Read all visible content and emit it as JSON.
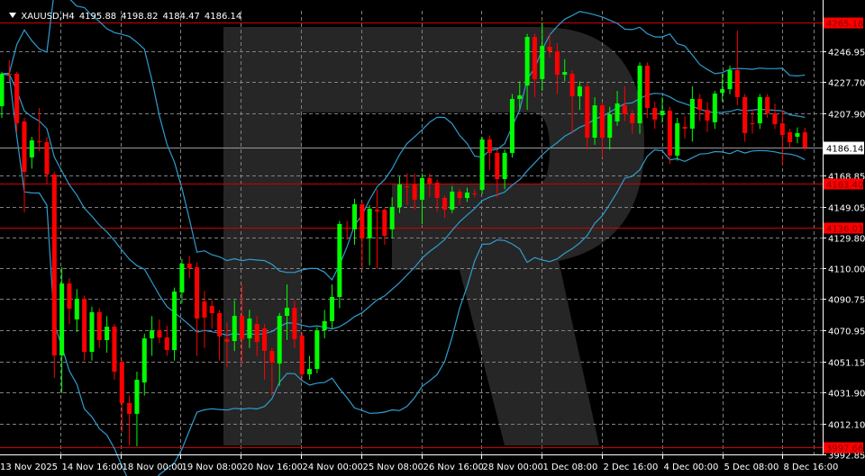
{
  "header": {
    "symbol": "XAUUSD,H4",
    "open": "4195.88",
    "high": "4198.82",
    "low": "4184.47",
    "close": "4186.14",
    "menu_icon": "triangle-down-icon"
  },
  "colors": {
    "background": "#000000",
    "bull": "#00ff00",
    "bear": "#ff0000",
    "bands": "#2f9ccf",
    "grid": "#808080",
    "level_line": "#d00000",
    "axis": "#ffffff"
  },
  "chart_data": {
    "type": "candlestick",
    "symbol": "XAUUSD",
    "timeframe": "H4",
    "ylim": [
      3992.85,
      4265.18
    ],
    "grid": true,
    "y_ticks": [
      "4246.95",
      "4227.70",
      "4207.90",
      "4168.85",
      "4149.05",
      "4129.80",
      "4110.00",
      "4090.75",
      "4070.95",
      "4051.15",
      "4031.90",
      "4012.10",
      "3992.85"
    ],
    "x_ticks": [
      "13 Nov 2025",
      "14 Nov 16:00",
      "18 Nov 00:00",
      "19 Nov 08:00",
      "20 Nov 16:00",
      "24 Nov 00:00",
      "25 Nov 08:00",
      "26 Nov 16:00",
      "28 Nov 00:00",
      "1 Dec 08:00",
      "2 Dec 16:00",
      "4 Dec 00:00",
      "5 Dec 08:00",
      "8 Dec 16:00"
    ],
    "current_price": "4186.14",
    "levels": [
      "4265.18",
      "4163.40",
      "4136.01",
      "3997.66"
    ],
    "indicator": "bollinger-bands",
    "ohlc": [
      [
        4212.4,
        4234,
        4205,
        4232.8
      ],
      [
        4232.8,
        4241.3,
        4228,
        4232.2
      ],
      [
        4232.8,
        4234,
        4196,
        4201.6
      ],
      [
        4202.7,
        4205,
        4145.4,
        4171.0
      ],
      [
        4180.0,
        4193,
        4173,
        4190.8
      ],
      [
        4190.2,
        4211.2,
        4184,
        4189.7
      ],
      [
        4189.7,
        4193,
        4163,
        4169.3
      ],
      [
        4169.3,
        4171,
        4041.1,
        4055.2
      ],
      [
        4055.2,
        4110.8,
        4031.4,
        4100.6
      ],
      [
        4100.6,
        4104,
        4075,
        4084.7
      ],
      [
        4077.9,
        4097,
        4070,
        4091.0
      ],
      [
        4091.0,
        4093,
        4052,
        4057.5
      ],
      [
        4057.5,
        4086,
        4052,
        4082.5
      ],
      [
        4082.5,
        4085,
        4060,
        4064.9
      ],
      [
        4064.9,
        4080,
        4057,
        4073.4
      ],
      [
        4073.4,
        4075,
        4040,
        4045.0
      ],
      [
        4051.3,
        4052,
        4007.0,
        4025.2
      ],
      [
        4025.2,
        4030,
        3998.5,
        4018.4
      ],
      [
        4018.4,
        4045,
        3998,
        4039.9
      ],
      [
        4038.2,
        4069,
        4030,
        4066.0
      ],
      [
        4066.0,
        4080,
        4055,
        4071.1
      ],
      [
        4071.1,
        4078,
        4063,
        4066.6
      ],
      [
        4066.6,
        4074,
        4055,
        4058.6
      ],
      [
        4058.6,
        4098,
        4052,
        4095.5
      ],
      [
        4094.9,
        4116,
        4088,
        4113.1
      ],
      [
        4113.1,
        4118,
        4104,
        4110.3
      ],
      [
        4110.8,
        4114,
        4055,
        4078.5
      ],
      [
        4089.3,
        4096,
        4060,
        4079.1
      ],
      [
        4086.4,
        4090,
        4072,
        4081.9
      ],
      [
        4081.9,
        4084,
        4052,
        4067.2
      ],
      [
        4065.5,
        4076,
        4048,
        4063.8
      ],
      [
        4064.3,
        4090,
        4058,
        4080.2
      ],
      [
        4080.2,
        4100,
        4050,
        4065.5
      ],
      [
        4066.0,
        4084,
        4060,
        4078.5
      ],
      [
        4075.1,
        4080,
        4055,
        4063.8
      ],
      [
        4072.3,
        4075,
        4040,
        4058.1
      ],
      [
        4058.1,
        4060,
        4030,
        4050.7
      ],
      [
        4050.1,
        4082,
        4036,
        4080.2
      ],
      [
        4080.2,
        4100,
        4065,
        4085.3
      ],
      [
        4085.3,
        4090,
        4060,
        4065.5
      ],
      [
        4067.7,
        4070,
        4040,
        4043.3
      ],
      [
        4043.3,
        4055,
        4040,
        4046.7
      ],
      [
        4046.7,
        4073,
        4044,
        4071.1
      ],
      [
        4071.1,
        4084,
        4066,
        4076.8
      ],
      [
        4076.8,
        4100,
        4072,
        4092.1
      ],
      [
        4092.1,
        4140,
        4085,
        4138.1
      ],
      [
        4135.8,
        4140,
        4128,
        4135.5
      ],
      [
        4134.7,
        4154,
        4125,
        4150.5
      ],
      [
        4150.5,
        4152,
        4110,
        4129.0
      ],
      [
        4129.0,
        4150,
        4112,
        4147.7
      ],
      [
        4147.1,
        4160,
        4110,
        4146.0
      ],
      [
        4147.1,
        4148,
        4125,
        4130.7
      ],
      [
        4134.7,
        4155,
        4129,
        4148.8
      ],
      [
        4148.8,
        4168,
        4145,
        4163.0
      ],
      [
        4161.9,
        4170,
        4150,
        4161.5
      ],
      [
        4163.0,
        4170,
        4147,
        4153.4
      ],
      [
        4153.4,
        4170,
        4138,
        4167.0
      ],
      [
        4167.0,
        4170,
        4155,
        4163.6
      ],
      [
        4164.1,
        4166,
        4146,
        4154.5
      ],
      [
        4154.5,
        4156,
        4142,
        4147.1
      ],
      [
        4147.1,
        4162,
        4145,
        4158.5
      ],
      [
        4158.5,
        4160,
        4150,
        4154.5
      ],
      [
        4154.5,
        4161,
        4152,
        4157.9
      ],
      [
        4157.4,
        4160,
        4155,
        4157.0
      ],
      [
        4159.6,
        4193,
        4157,
        4191.4
      ],
      [
        4191.4,
        4194,
        4172,
        4182.9
      ],
      [
        4182.9,
        4185,
        4155,
        4166.4
      ],
      [
        4166.4,
        4185,
        4160,
        4182.9
      ],
      [
        4182.9,
        4220,
        4180,
        4216.9
      ],
      [
        4216.9,
        4228,
        4210,
        4219.2
      ],
      [
        4225.4,
        4258,
        4210,
        4256.0
      ],
      [
        4256.0,
        4258,
        4218,
        4229.4
      ],
      [
        4229.4,
        4265,
        4222,
        4250.4
      ],
      [
        4249.8,
        4258,
        4243,
        4247.0
      ],
      [
        4247.0,
        4252,
        4220,
        4232.2
      ],
      [
        4232.2,
        4242,
        4228,
        4233.9
      ],
      [
        4232.8,
        4235,
        4195,
        4218.6
      ],
      [
        4218.6,
        4228,
        4210,
        4224.8
      ],
      [
        4224.8,
        4227,
        4185,
        4192.5
      ],
      [
        4192.5,
        4218,
        4188,
        4212.9
      ],
      [
        4212.9,
        4215,
        4180,
        4192.5
      ],
      [
        4192.5,
        4212,
        4185,
        4207.3
      ],
      [
        4202.7,
        4222,
        4200,
        4214.1
      ],
      [
        4212.9,
        4225,
        4203,
        4207.3
      ],
      [
        4207.3,
        4210,
        4195,
        4201.6
      ],
      [
        4201.6,
        4240,
        4195,
        4237.9
      ],
      [
        4237.9,
        4240,
        4205,
        4211.2
      ],
      [
        4211.2,
        4215,
        4198,
        4203.9
      ],
      [
        4206.7,
        4218,
        4202,
        4209.5
      ],
      [
        4209.5,
        4212,
        4176,
        4181.2
      ],
      [
        4181.2,
        4205,
        4178,
        4201.6
      ],
      [
        4199.3,
        4206,
        4192,
        4198.2
      ],
      [
        4198.2,
        4225,
        4190,
        4216.9
      ],
      [
        4216.9,
        4220,
        4203,
        4210.1
      ],
      [
        4210.1,
        4215,
        4196,
        4203.3
      ],
      [
        4202.2,
        4222,
        4198,
        4220.3
      ],
      [
        4220.8,
        4233,
        4215,
        4223.1
      ],
      [
        4223.1,
        4238,
        4220,
        4235.1
      ],
      [
        4235.1,
        4260,
        4213,
        4218.1
      ],
      [
        4218.1,
        4220,
        4190,
        4195.4
      ],
      [
        4201.6,
        4210,
        4195,
        4201.0
      ],
      [
        4201.6,
        4220,
        4198,
        4218.1
      ],
      [
        4218.1,
        4220,
        4205,
        4207.9
      ],
      [
        4207.9,
        4214,
        4198,
        4201.0
      ],
      [
        4201.6,
        4210,
        4175,
        4194.2
      ],
      [
        4195.9,
        4198,
        4186,
        4189.7
      ],
      [
        4193.1,
        4199,
        4189,
        4195.4
      ],
      [
        4195.88,
        4198.82,
        4184.47,
        4186.14
      ]
    ]
  }
}
